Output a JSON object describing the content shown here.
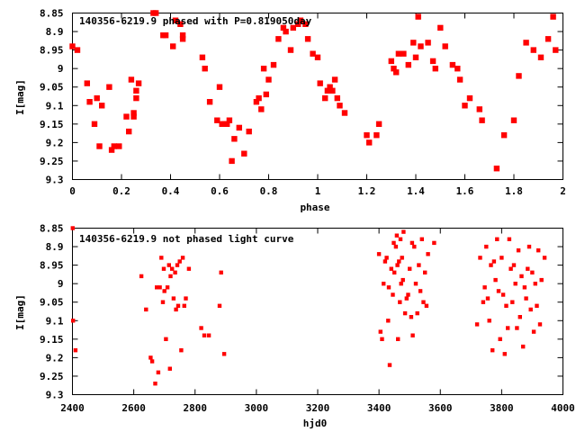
{
  "chart_data": [
    {
      "type": "scatter",
      "title": "140356-6219.9 phased with P=0.819050day",
      "xlabel": "phase",
      "ylabel": "I[mag]",
      "xlim": [
        0,
        2
      ],
      "ylim": [
        9.3,
        8.85
      ],
      "y_inverted": true,
      "xticks": [
        "0",
        "0.2",
        "0.4",
        "0.6",
        "0.8",
        "1",
        "1.2",
        "1.4",
        "1.6",
        "1.8",
        "2"
      ],
      "xtick_values": [
        0,
        0.2,
        0.4,
        0.6,
        0.8,
        1,
        1.2,
        1.4,
        1.6,
        1.8,
        2
      ],
      "yticks": [
        "8.85",
        "8.9",
        "8.95",
        "9",
        "9.05",
        "9.1",
        "9.15",
        "9.2",
        "9.25",
        "9.3"
      ],
      "ytick_values": [
        8.85,
        8.9,
        8.95,
        9,
        9.05,
        9.1,
        9.15,
        9.2,
        9.25,
        9.3
      ],
      "marker_color": "#ff0000",
      "marker_size": "large",
      "series": [
        {
          "x": [
            0.0,
            0.02,
            0.06,
            0.07,
            0.09,
            0.1,
            0.11,
            0.12,
            0.15,
            0.16,
            0.17,
            0.19,
            0.22,
            0.23,
            0.24,
            0.25,
            0.25,
            0.26,
            0.26,
            0.27,
            0.33,
            0.34,
            0.37,
            0.38,
            0.41,
            0.42,
            0.44,
            0.45,
            0.45,
            0.53,
            0.54,
            0.56,
            0.59,
            0.6,
            0.61,
            0.62,
            0.63,
            0.64,
            0.65,
            0.66,
            0.68,
            0.7,
            0.72,
            0.75,
            0.76,
            0.77,
            0.78,
            0.79,
            0.8,
            0.82,
            0.84,
            0.86,
            0.87,
            0.89,
            0.9,
            0.92,
            0.93,
            0.95,
            0.96,
            0.98,
            1.0,
            1.01,
            1.03,
            1.04,
            1.05,
            1.06,
            1.07,
            1.08,
            1.09,
            1.11,
            1.2,
            1.21,
            1.24,
            1.25,
            1.3,
            1.31,
            1.32,
            1.33,
            1.35,
            1.37,
            1.39,
            1.4,
            1.41,
            1.42,
            1.45,
            1.47,
            1.48,
            1.5,
            1.52,
            1.55,
            1.57,
            1.58,
            1.6,
            1.62,
            1.66,
            1.67,
            1.73,
            1.76,
            1.8,
            1.82,
            1.85,
            1.88,
            1.91,
            1.94,
            1.96,
            1.97
          ],
          "y": [
            8.94,
            8.95,
            9.04,
            9.09,
            9.15,
            9.08,
            9.21,
            9.1,
            9.05,
            9.22,
            9.21,
            9.21,
            9.13,
            9.17,
            9.03,
            9.12,
            9.13,
            9.06,
            9.08,
            9.04,
            8.85,
            8.85,
            8.91,
            8.91,
            8.94,
            8.87,
            8.88,
            8.91,
            8.92,
            8.97,
            9.0,
            9.09,
            9.14,
            9.05,
            9.15,
            9.15,
            9.15,
            9.14,
            9.25,
            9.19,
            9.16,
            9.23,
            9.17,
            9.09,
            9.08,
            9.11,
            9.0,
            9.07,
            9.03,
            8.99,
            8.92,
            8.89,
            8.9,
            8.95,
            8.89,
            8.88,
            8.87,
            8.88,
            8.92,
            8.96,
            8.97,
            9.04,
            9.08,
            9.06,
            9.05,
            9.06,
            9.03,
            9.08,
            9.1,
            9.12,
            9.18,
            9.2,
            9.18,
            9.15,
            8.98,
            9.0,
            9.01,
            8.96,
            8.96,
            8.99,
            8.93,
            8.97,
            8.86,
            8.94,
            8.93,
            8.98,
            9.0,
            8.89,
            8.94,
            8.99,
            9.0,
            9.03,
            9.1,
            9.08,
            9.11,
            9.14,
            9.27,
            9.18,
            9.14,
            9.02,
            8.93,
            8.95,
            8.97,
            8.92,
            8.86,
            8.95
          ]
        }
      ]
    },
    {
      "type": "scatter",
      "title": "140356-6219.9 not phased light curve",
      "xlabel": "hjd0",
      "ylabel": "I[mag]",
      "xlim": [
        2400,
        4000
      ],
      "ylim": [
        9.3,
        8.85
      ],
      "y_inverted": true,
      "xticks": [
        "2400",
        "2600",
        "2800",
        "3000",
        "3200",
        "3400",
        "3600",
        "3800",
        "4000"
      ],
      "xtick_values": [
        2400,
        2600,
        2800,
        3000,
        3200,
        3400,
        3600,
        3800,
        4000
      ],
      "yticks": [
        "8.85",
        "8.9",
        "8.95",
        "9",
        "9.05",
        "9.1",
        "9.15",
        "9.2",
        "9.25",
        "9.3"
      ],
      "ytick_values": [
        8.85,
        8.9,
        8.95,
        9,
        9.05,
        9.1,
        9.15,
        9.2,
        9.25,
        9.3
      ],
      "marker_color": "#ff0000",
      "marker_size": "small",
      "series": [
        {
          "x": [
            2401,
            2402,
            2410,
            2625,
            2640,
            2655,
            2660,
            2670,
            2675,
            2680,
            2685,
            2690,
            2695,
            2698,
            2700,
            2705,
            2710,
            2715,
            2718,
            2720,
            2725,
            2730,
            2735,
            2738,
            2742,
            2745,
            2750,
            2755,
            2760,
            2765,
            2770,
            2780,
            2820,
            2830,
            2845,
            2880,
            2885,
            2895,
            3400,
            3405,
            3410,
            3415,
            3420,
            3425,
            3430,
            3432,
            3435,
            3440,
            3445,
            3448,
            3450,
            3455,
            3458,
            3460,
            3462,
            3465,
            3468,
            3470,
            3472,
            3475,
            3478,
            3480,
            3485,
            3490,
            3495,
            3500,
            3505,
            3508,
            3510,
            3515,
            3520,
            3525,
            3530,
            3535,
            3540,
            3545,
            3550,
            3555,
            3560,
            3580,
            3720,
            3730,
            3740,
            3745,
            3750,
            3755,
            3760,
            3765,
            3770,
            3775,
            3780,
            3785,
            3790,
            3795,
            3800,
            3805,
            3810,
            3815,
            3820,
            3825,
            3830,
            3835,
            3840,
            3845,
            3850,
            3855,
            3860,
            3865,
            3870,
            3875,
            3880,
            3885,
            3890,
            3895,
            3900,
            3905,
            3910,
            3915,
            3920,
            3925,
            3930,
            3940
          ],
          "y": [
            8.85,
            9.1,
            9.18,
            8.98,
            9.07,
            9.2,
            9.21,
            9.27,
            9.01,
            9.24,
            9.01,
            8.93,
            9.05,
            8.96,
            9.02,
            9.15,
            9.01,
            8.95,
            9.23,
            8.98,
            8.96,
            9.04,
            8.97,
            9.07,
            8.95,
            9.06,
            8.94,
            9.18,
            8.93,
            9.06,
            9.04,
            8.96,
            9.12,
            9.14,
            9.14,
            9.06,
            8.97,
            9.19,
            8.92,
            9.13,
            9.15,
            9.0,
            8.94,
            8.93,
            9.1,
            9.01,
            9.22,
            8.96,
            9.03,
            8.89,
            8.97,
            8.9,
            8.87,
            8.95,
            9.15,
            8.94,
            9.05,
            8.88,
            9.0,
            8.93,
            8.99,
            8.86,
            9.08,
            9.04,
            9.03,
            8.96,
            9.09,
            8.89,
            9.14,
            8.9,
            9.0,
            9.08,
            8.95,
            9.02,
            8.88,
            9.05,
            8.97,
            9.06,
            8.92,
            8.89,
            9.11,
            8.93,
            9.05,
            9.01,
            8.9,
            9.04,
            9.1,
            8.95,
            9.18,
            8.94,
            8.99,
            8.88,
            9.02,
            9.15,
            8.93,
            9.03,
            9.19,
            9.06,
            9.12,
            8.88,
            8.96,
            9.05,
            8.95,
            9.0,
            9.12,
            8.91,
            9.09,
            8.98,
            9.17,
            9.01,
            9.04,
            8.96,
            8.9,
            9.07,
            8.97,
            9.13,
            9.0,
            9.06,
            8.91,
            9.11,
            8.99,
            8.93
          ]
        }
      ]
    }
  ]
}
